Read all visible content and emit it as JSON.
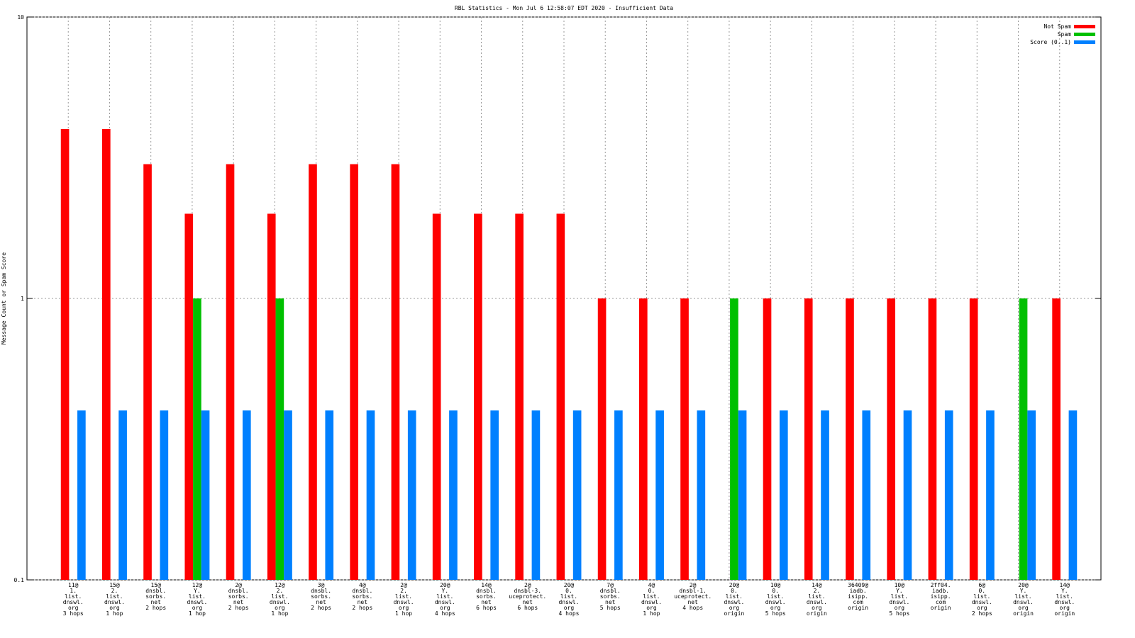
{
  "chart_data": {
    "type": "bar",
    "title": "RBL Statistics - Mon Jul  6 12:58:07 EDT 2020 - Insufficient Data",
    "y_label": "Message Count or Spam Score",
    "log_scale_y": true,
    "grid": true,
    "legend_position": "top-right",
    "ylim": [
      0.1,
      10
    ],
    "yticks": [
      0.1,
      1,
      10
    ],
    "categories": [
      [
        "11@",
        "1.",
        "list.",
        "dnswl.",
        "org",
        "3 hops"
      ],
      [
        "15@",
        "2.",
        "list.",
        "dnswl.",
        "org",
        "1 hop"
      ],
      [
        "15@",
        "dnsbl.",
        "sorbs.",
        "net",
        "2 hops"
      ],
      [
        "12@",
        "Y.",
        "list.",
        "dnswl.",
        "org",
        "1 hop"
      ],
      [
        "2@",
        "dnsbl.",
        "sorbs.",
        "net",
        "2 hops"
      ],
      [
        "12@",
        "2.",
        "list.",
        "dnswl.",
        "org",
        "1 hop"
      ],
      [
        "3@",
        "dnsbl.",
        "sorbs.",
        "net",
        "2 hops"
      ],
      [
        "4@",
        "dnsbl.",
        "sorbs.",
        "net",
        "2 hops"
      ],
      [
        "2@",
        "2.",
        "list.",
        "dnswl.",
        "org",
        "1 hop"
      ],
      [
        "20@",
        "Y.",
        "list.",
        "dnswl.",
        "org",
        "4 hops"
      ],
      [
        "14@",
        "dnsbl.",
        "sorbs.",
        "net",
        "6 hops"
      ],
      [
        "2@",
        "dnsbl-3.",
        "uceprotect.",
        "net",
        "6 hops"
      ],
      [
        "20@",
        "0.",
        "list.",
        "dnswl.",
        "org",
        "4 hops"
      ],
      [
        "7@",
        "dnsbl.",
        "sorbs.",
        "net",
        "5 hops"
      ],
      [
        "4@",
        "0.",
        "list.",
        "dnswl.",
        "org",
        "1 hop"
      ],
      [
        "2@",
        "dnsbl-1.",
        "uceprotect.",
        "net",
        "4 hops"
      ],
      [
        "20@",
        "0.",
        "list.",
        "dnswl.",
        "org",
        "origin"
      ],
      [
        "10@",
        "0.",
        "list.",
        "dnswl.",
        "org",
        "5 hops"
      ],
      [
        "14@",
        "2.",
        "list.",
        "dnswl.",
        "org",
        "origin"
      ],
      [
        "36409@",
        "iadb.",
        "isipp.",
        "com",
        "origin"
      ],
      [
        "10@",
        "Y.",
        "list.",
        "dnswl.",
        "org",
        "5 hops"
      ],
      [
        "2ff04.",
        "iadb.",
        "isipp.",
        "com",
        "origin"
      ],
      [
        "6@",
        "0.",
        "list.",
        "dnswl.",
        "org",
        "2 hops"
      ],
      [
        "20@",
        "Y.",
        "list.",
        "dnswl.",
        "org",
        "origin"
      ],
      [
        "14@",
        "Y.",
        "list.",
        "dnswl.",
        "org",
        "origin"
      ]
    ],
    "series": [
      {
        "name": "Not Spam",
        "color": "#ff0000",
        "values": [
          4,
          4,
          3,
          2,
          3,
          2,
          3,
          3,
          3,
          2,
          2,
          2,
          2,
          1,
          1,
          1,
          null,
          1,
          1,
          1,
          1,
          1,
          1,
          null,
          1
        ]
      },
      {
        "name": "Spam",
        "color": "#00c000",
        "values": [
          null,
          null,
          null,
          1,
          null,
          1,
          null,
          null,
          null,
          null,
          null,
          null,
          null,
          null,
          null,
          null,
          1,
          null,
          null,
          null,
          null,
          null,
          null,
          1,
          null
        ]
      },
      {
        "name": "Score (0..1)",
        "color": "#0080ff",
        "values": [
          0.4,
          0.4,
          0.4,
          0.4,
          0.4,
          0.4,
          0.4,
          0.4,
          0.4,
          0.4,
          0.4,
          0.4,
          0.4,
          0.4,
          0.4,
          0.4,
          0.4,
          0.4,
          0.4,
          0.4,
          0.4,
          0.4,
          0.4,
          0.4,
          0.4
        ]
      }
    ]
  }
}
